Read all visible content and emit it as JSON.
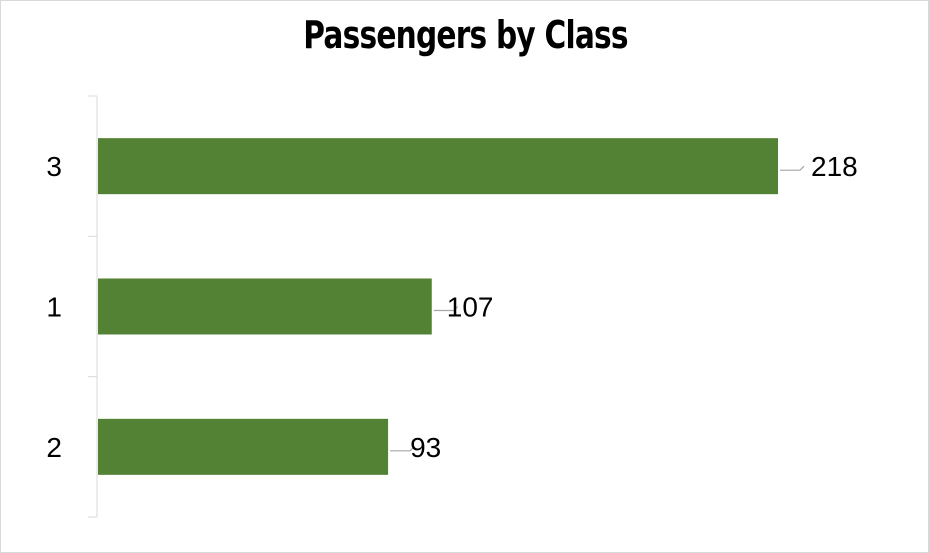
{
  "chart_data": {
    "type": "bar",
    "orientation": "horizontal",
    "title": "Passengers by Class",
    "categories": [
      "3",
      "1",
      "2"
    ],
    "values": [
      218,
      107,
      93
    ],
    "xlabel": "",
    "ylabel": "",
    "xlim": [
      0,
      218
    ],
    "grid": false,
    "legend": "none",
    "bar_color": "#548235",
    "data_labels": true
  }
}
